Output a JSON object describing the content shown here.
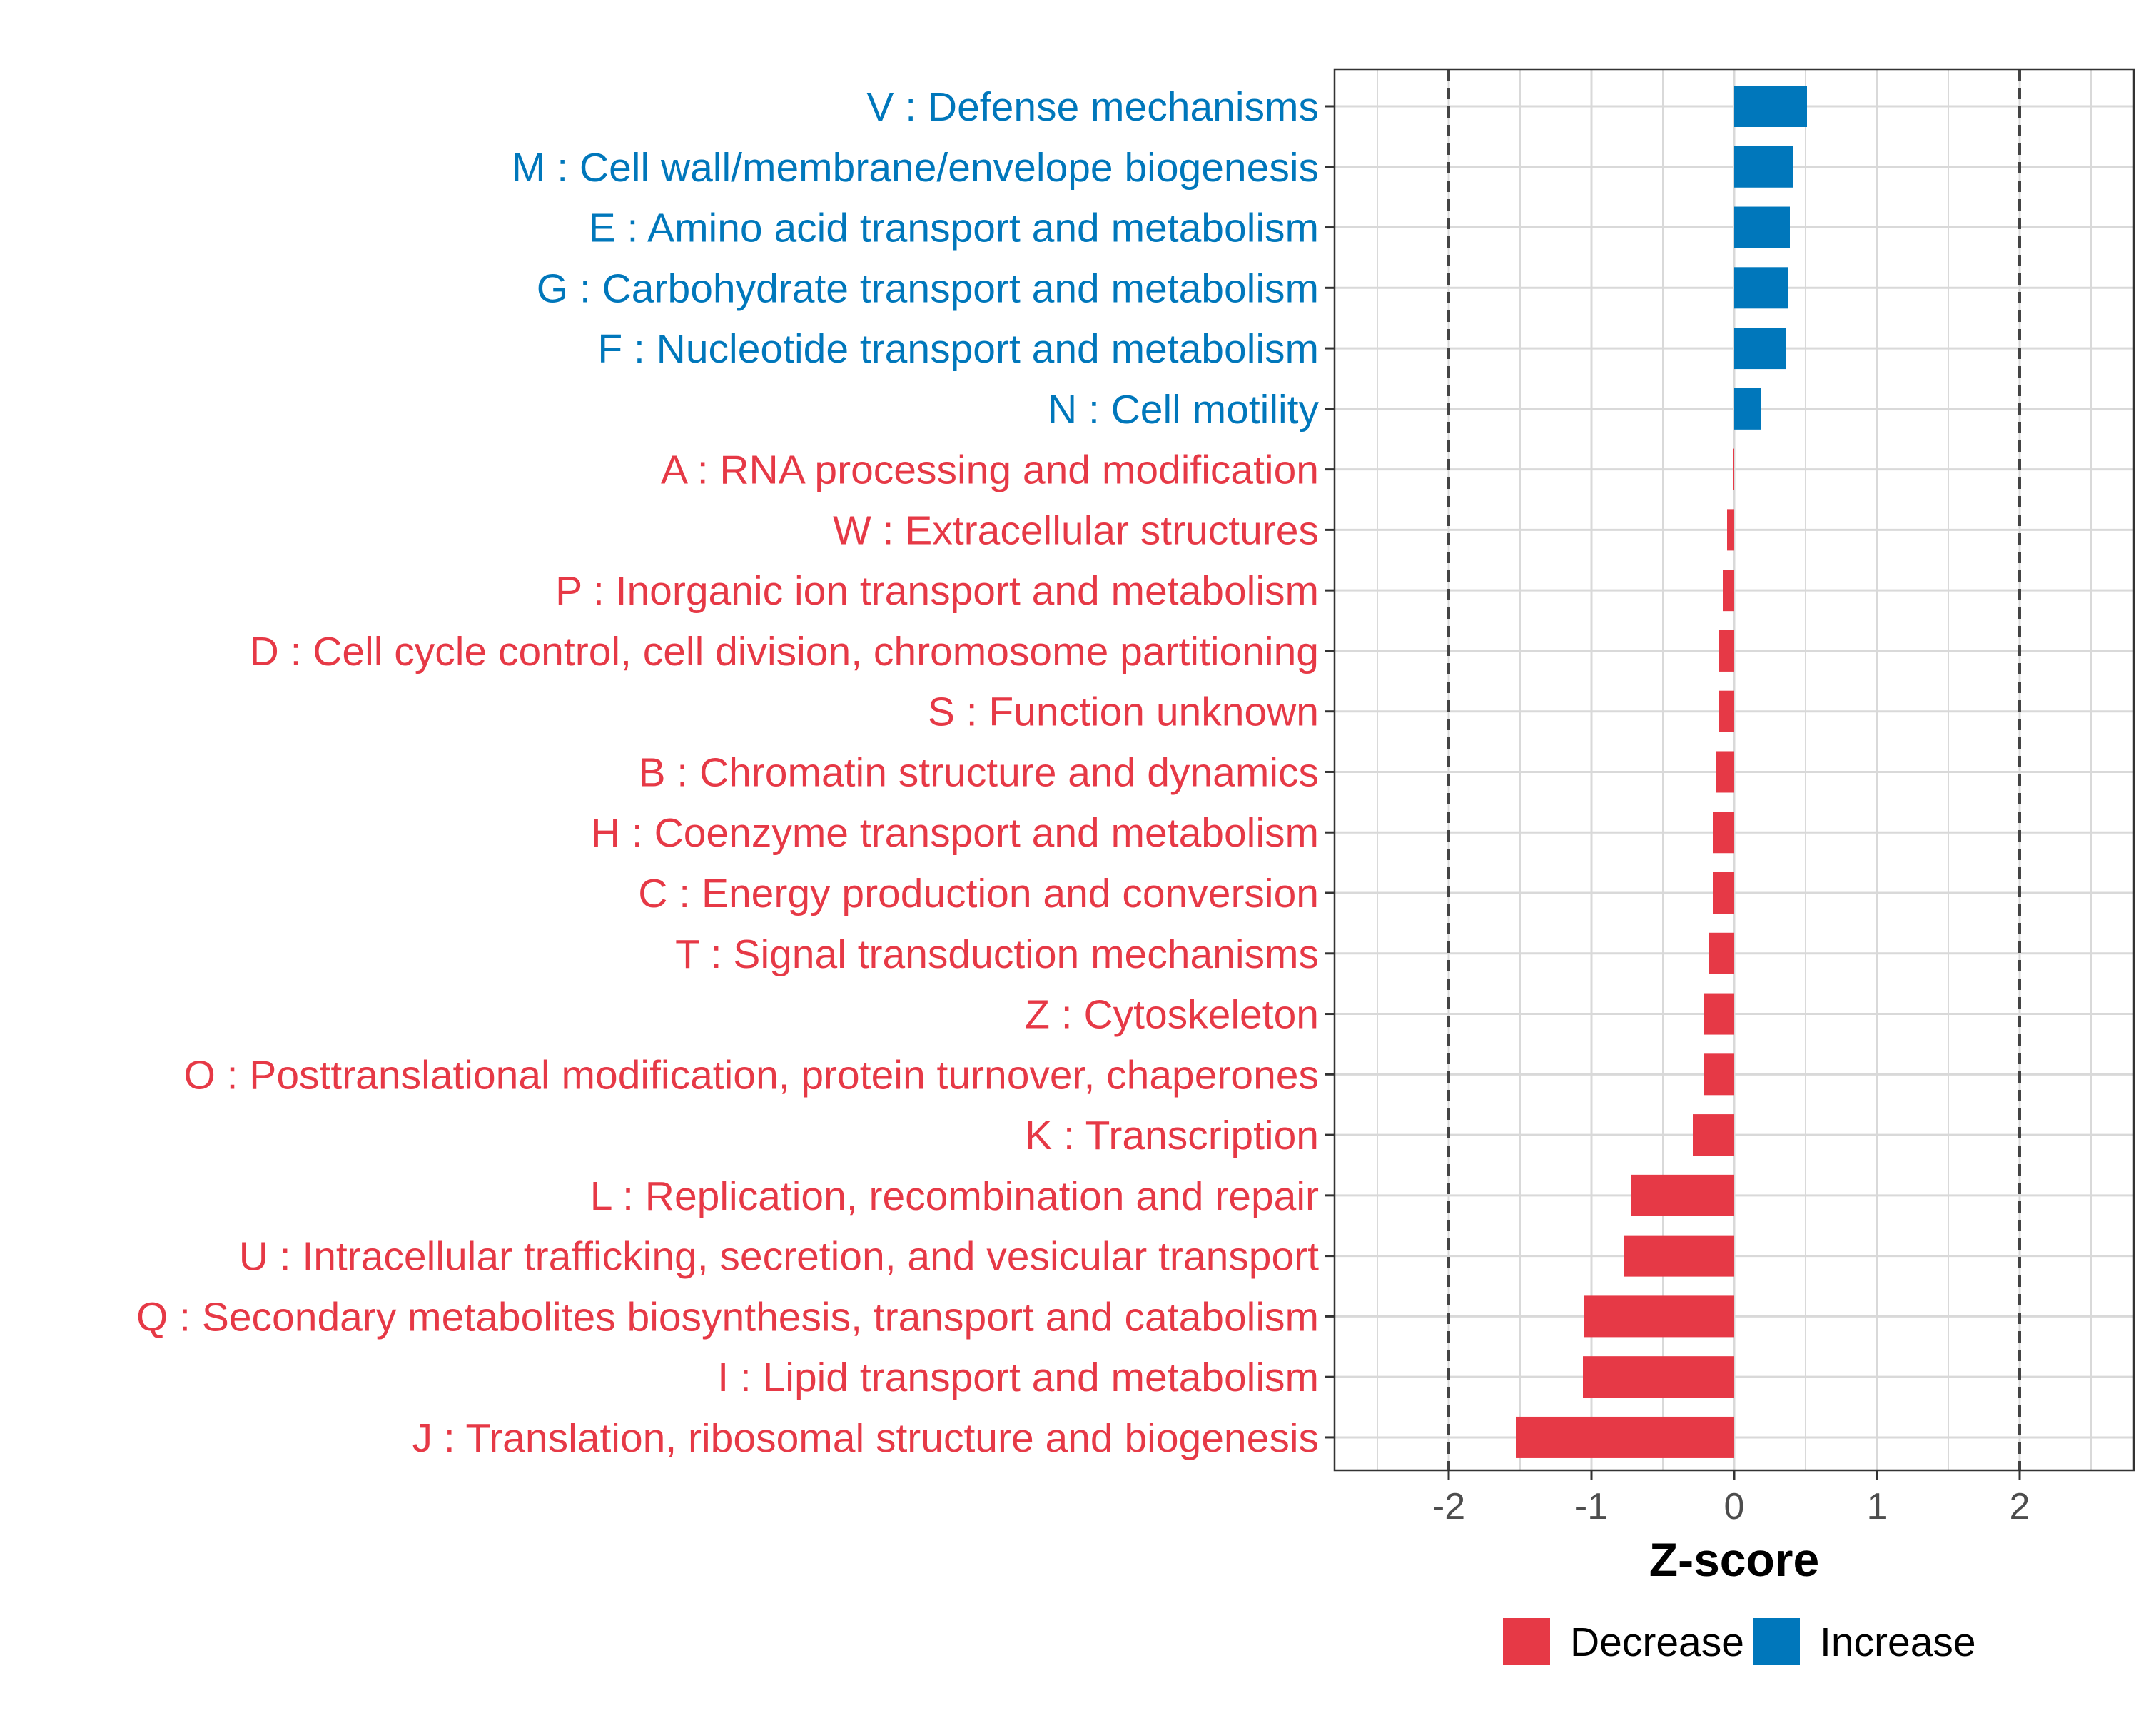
{
  "colors": {
    "decrease": "#E63946",
    "increase": "#0077BB",
    "grid": "#d9d9d9",
    "threshold_line": "#444444",
    "panel_border": "#333333",
    "tick_text": "#4d4d4d"
  },
  "chart_data": {
    "type": "bar",
    "orientation": "horizontal",
    "title": "",
    "xlabel": "Z-score",
    "ylabel": "",
    "xlim": [
      -2.8,
      2.8
    ],
    "x_ticks": [
      -2,
      -1,
      0,
      1,
      2
    ],
    "x_tick_labels": [
      "-2",
      "-1",
      "0",
      "1",
      "2"
    ],
    "threshold_lines": [
      -2,
      2
    ],
    "grid": true,
    "legend": {
      "position": "bottom",
      "entries": [
        {
          "key": "decrease",
          "label": "Decrease"
        },
        {
          "key": "increase",
          "label": "Increase"
        }
      ]
    },
    "bars": [
      {
        "label": "V : Defense mechanisms",
        "value": 0.51,
        "direction": "increase"
      },
      {
        "label": "M : Cell wall/membrane/envelope biogenesis",
        "value": 0.41,
        "direction": "increase"
      },
      {
        "label": "E : Amino acid transport and metabolism",
        "value": 0.39,
        "direction": "increase"
      },
      {
        "label": "G : Carbohydrate transport and metabolism",
        "value": 0.38,
        "direction": "increase"
      },
      {
        "label": "F : Nucleotide transport and metabolism",
        "value": 0.36,
        "direction": "increase"
      },
      {
        "label": "N : Cell motility",
        "value": 0.19,
        "direction": "increase"
      },
      {
        "label": "A : RNA processing and modification",
        "value": -0.01,
        "direction": "decrease"
      },
      {
        "label": "W : Extracellular structures",
        "value": -0.05,
        "direction": "decrease"
      },
      {
        "label": "P : Inorganic ion transport and metabolism",
        "value": -0.08,
        "direction": "decrease"
      },
      {
        "label": "D : Cell cycle control, cell division, chromosome partitioning",
        "value": -0.11,
        "direction": "decrease"
      },
      {
        "label": "S : Function unknown",
        "value": -0.11,
        "direction": "decrease"
      },
      {
        "label": "B : Chromatin structure and dynamics",
        "value": -0.13,
        "direction": "decrease"
      },
      {
        "label": "H : Coenzyme transport and metabolism",
        "value": -0.15,
        "direction": "decrease"
      },
      {
        "label": "C : Energy production and conversion",
        "value": -0.15,
        "direction": "decrease"
      },
      {
        "label": "T : Signal transduction mechanisms",
        "value": -0.18,
        "direction": "decrease"
      },
      {
        "label": "Z : Cytoskeleton",
        "value": -0.21,
        "direction": "decrease"
      },
      {
        "label": "O : Posttranslational modification, protein turnover, chaperones",
        "value": -0.21,
        "direction": "decrease"
      },
      {
        "label": "K : Transcription",
        "value": -0.29,
        "direction": "decrease"
      },
      {
        "label": "L : Replication, recombination and repair",
        "value": -0.72,
        "direction": "decrease"
      },
      {
        "label": "U : Intracellular trafficking, secretion, and vesicular transport",
        "value": -0.77,
        "direction": "decrease"
      },
      {
        "label": "Q : Secondary metabolites biosynthesis, transport and catabolism",
        "value": -1.05,
        "direction": "decrease"
      },
      {
        "label": "I : Lipid transport and metabolism",
        "value": -1.06,
        "direction": "decrease"
      },
      {
        "label": "J : Translation, ribosomal structure and biogenesis",
        "value": -1.53,
        "direction": "decrease"
      }
    ]
  }
}
